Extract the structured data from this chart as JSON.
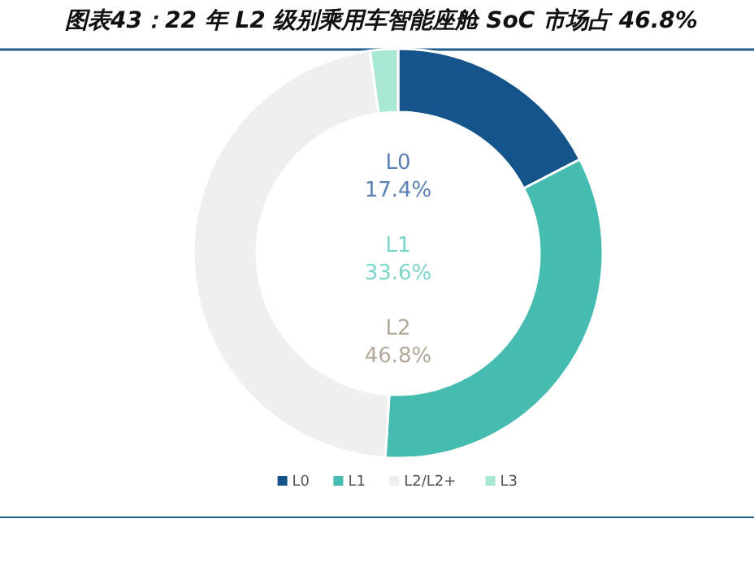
{
  "chart_data": {
    "type": "donut",
    "title": "图表43：22 年 L2 级别乘用车智能座舱 SoC 市场占 46.8%",
    "categories": [
      "L0",
      "L1",
      "L2/L2+",
      "L3"
    ],
    "values": [
      17.4,
      33.6,
      46.8,
      2.2
    ],
    "colors": [
      "#15548a",
      "#46bcb0",
      "#efefef",
      "#a8e6d6"
    ],
    "value_labels": [
      "17.4%",
      "33.6%",
      "46.8%",
      null
    ],
    "annotations": [
      "L0",
      "L1",
      "L2"
    ],
    "legend": "bottom"
  }
}
